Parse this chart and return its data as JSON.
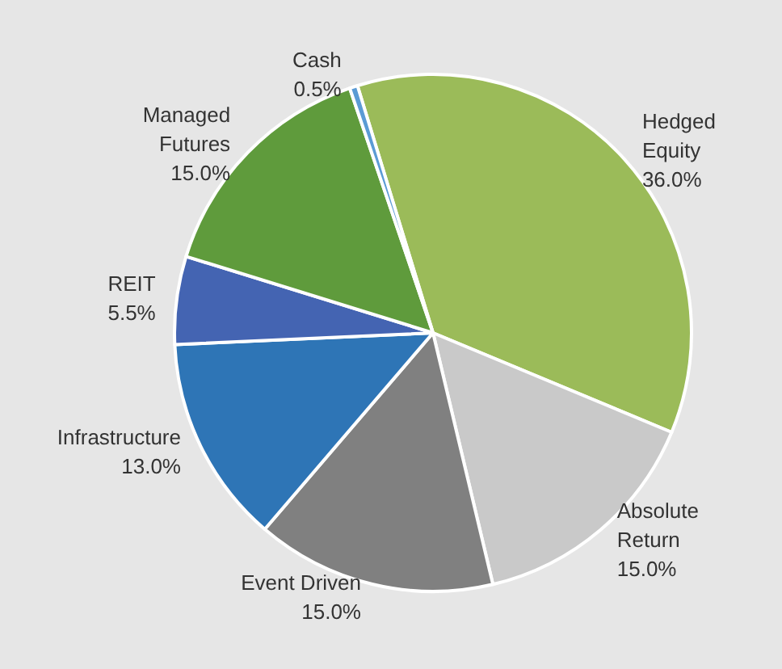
{
  "chart_data": {
    "type": "pie",
    "categories": [
      "Hedged\nEquity",
      "Absolute\nReturn",
      "Event Driven",
      "Infrastructure",
      "REIT",
      "Managed\nFutures",
      "Cash"
    ],
    "values": [
      36.0,
      15.0,
      15.0,
      13.0,
      5.5,
      15.0,
      0.5
    ],
    "colors": [
      "#9bbb59",
      "#c9c9c9",
      "#808080",
      "#2e75b6",
      "#4464b2",
      "#5f9b3c",
      "#5b9bd5"
    ],
    "value_labels": [
      "36.0%",
      "15.0%",
      "15.0%",
      "13.0%",
      "5.5%",
      "15.0%",
      "0.5%"
    ],
    "legend": false
  }
}
